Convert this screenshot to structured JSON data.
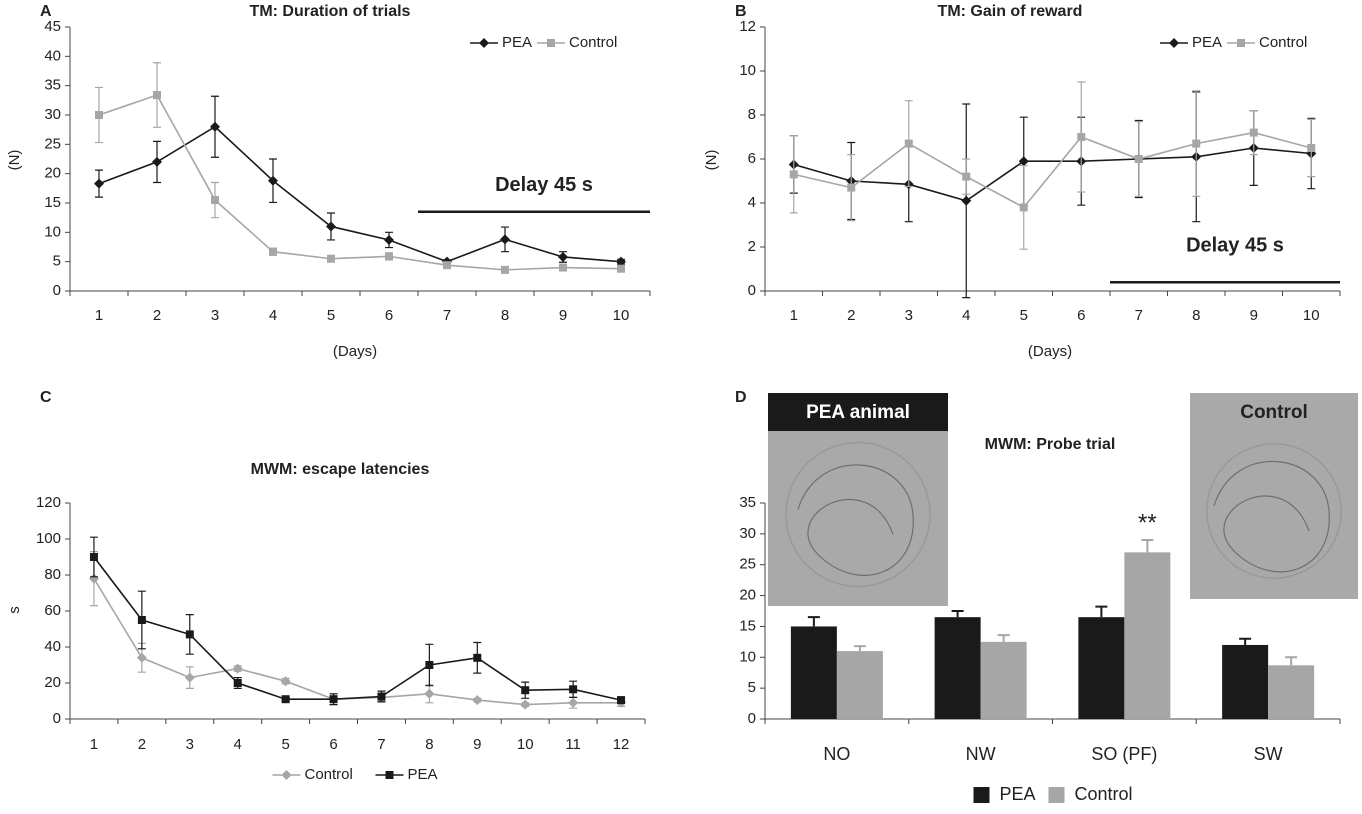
{
  "chart_data": [
    {
      "type": "line",
      "panel_label": "A",
      "title": "TM: Duration of trials",
      "ylabel": "(N)",
      "xlabel": "(Days)",
      "categories": [
        "1",
        "2",
        "3",
        "4",
        "5",
        "6",
        "7",
        "8",
        "9",
        "10"
      ],
      "series": [
        {
          "name": "PEA",
          "color": "#1a1a1a",
          "marker": "diamond",
          "values": [
            18.3,
            22,
            28,
            18.8,
            11,
            8.7,
            5,
            8.8,
            5.8,
            5
          ],
          "errors": [
            2.3,
            3.5,
            5.2,
            3.7,
            2.3,
            1.3,
            0.3,
            2.1,
            0.9,
            0.4
          ]
        },
        {
          "name": "Control",
          "color": "#a6a6a6",
          "marker": "square",
          "values": [
            30,
            33.4,
            15.5,
            6.7,
            5.5,
            5.9,
            4.4,
            3.6,
            4,
            3.8
          ],
          "errors": [
            4.7,
            5.5,
            3,
            0.6,
            0.5,
            0.6,
            0.4,
            0.3,
            0.3,
            0.3
          ]
        }
      ],
      "ylim": [
        0,
        45
      ],
      "yticks": [
        0,
        5,
        10,
        15,
        20,
        25,
        30,
        35,
        40,
        45
      ],
      "legend": "upper right",
      "annotation": "Delay 45 s"
    },
    {
      "type": "line",
      "panel_label": "B",
      "title": "TM: Gain of reward",
      "ylabel": "(N)",
      "xlabel": "(Days)",
      "categories": [
        "1",
        "2",
        "3",
        "4",
        "5",
        "6",
        "7",
        "8",
        "9",
        "10"
      ],
      "series": [
        {
          "name": "PEA",
          "color": "#1a1a1a",
          "marker": "diamond",
          "values": [
            5.75,
            5,
            4.85,
            4.1,
            5.9,
            5.9,
            6,
            6.1,
            6.5,
            6.25
          ],
          "errors": [
            1.3,
            1.75,
            1.7,
            4.4,
            2,
            2,
            1.75,
            2.95,
            1.7,
            1.6
          ]
        },
        {
          "name": "Control",
          "color": "#a6a6a6",
          "marker": "square",
          "values": [
            5.3,
            4.7,
            6.7,
            5.2,
            3.8,
            7,
            6,
            6.7,
            7.2,
            6.5
          ],
          "errors": [
            1.75,
            1.5,
            1.95,
            0.8,
            1.9,
            2.5,
            1.7,
            2.4,
            1,
            1.3
          ]
        }
      ],
      "ylim": [
        0,
        12
      ],
      "yticks": [
        0,
        2,
        4,
        6,
        8,
        10,
        12
      ],
      "legend": "upper right",
      "annotation": "Delay 45 s"
    },
    {
      "type": "line",
      "panel_label": "C",
      "title": "MWM: escape latencies",
      "ylabel": "s",
      "categories": [
        "1",
        "2",
        "3",
        "4",
        "5",
        "6",
        "7",
        "8",
        "9",
        "10",
        "11",
        "12"
      ],
      "series": [
        {
          "name": "Control",
          "color": "#a6a6a6",
          "marker": "diamond",
          "values": [
            78,
            34,
            23,
            28,
            21,
            11,
            12,
            14,
            10.5,
            8,
            9,
            9
          ],
          "errors": [
            15,
            8,
            6,
            1.5,
            1.5,
            3,
            2,
            5,
            1,
            1,
            3,
            2
          ]
        },
        {
          "name": "PEA",
          "color": "#1a1a1a",
          "marker": "square",
          "values": [
            90,
            55,
            47,
            20,
            11,
            11,
            12.5,
            30,
            34,
            16,
            16.5,
            10.5
          ],
          "errors": [
            11,
            16,
            11,
            3,
            1,
            3,
            3,
            11.5,
            8.5,
            4.5,
            4.5,
            1.5
          ]
        }
      ],
      "ylim": [
        0,
        120
      ],
      "yticks": [
        0,
        20,
        40,
        60,
        80,
        100,
        120
      ],
      "legend": "lower center"
    },
    {
      "type": "bar",
      "panel_label": "D",
      "title": "MWM: Probe trial",
      "categories": [
        "NO",
        "NW",
        "SO (PF)",
        "SW"
      ],
      "series": [
        {
          "name": "PEA",
          "color": "#1a1a1a",
          "values": [
            15,
            16.5,
            16.5,
            12
          ],
          "errors": [
            1.5,
            1,
            1.7,
            1
          ]
        },
        {
          "name": "Control",
          "color": "#a6a6a6",
          "values": [
            11,
            12.5,
            27,
            8.7
          ],
          "errors": [
            0.8,
            1.1,
            2,
            1.3
          ]
        }
      ],
      "ylim": [
        0,
        35
      ],
      "yticks": [
        0,
        5,
        10,
        15,
        20,
        25,
        30,
        35
      ],
      "legend": "lower center",
      "annotation": "**",
      "insets": [
        "PEA animal",
        "Control"
      ]
    }
  ]
}
